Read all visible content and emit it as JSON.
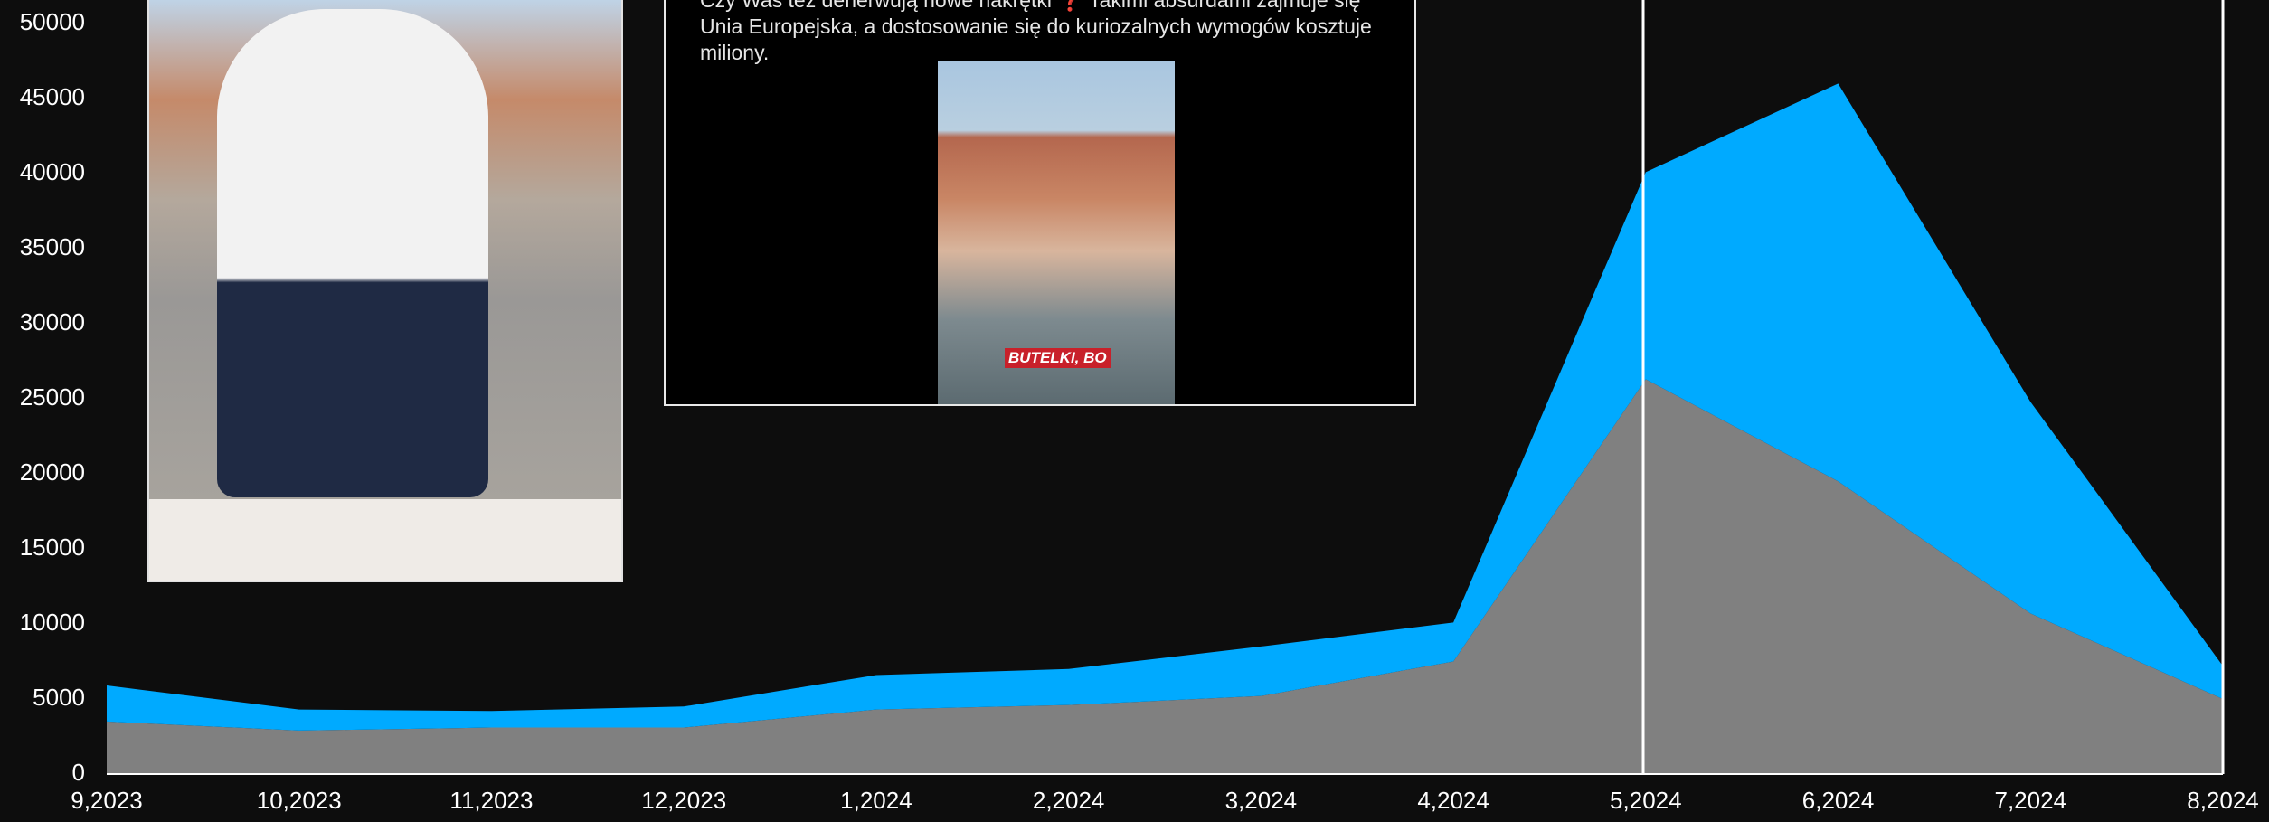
{
  "chart_data": {
    "type": "stacked_area",
    "categories": [
      "9,2023",
      "10,2023",
      "11,2023",
      "12,2023",
      "1,2024",
      "2,2024",
      "3,2024",
      "4,2024",
      "5,2024",
      "6,2024",
      "7,2024",
      "8,2024"
    ],
    "series": [
      {
        "color": "#808080",
        "values": [
          3500,
          2900,
          3100,
          3100,
          4300,
          4600,
          5200,
          7500,
          26300,
          19500,
          10700,
          5000
        ]
      },
      {
        "color": "#00aaff",
        "values": [
          2400,
          1400,
          1100,
          1400,
          2300,
          2400,
          3300,
          2600,
          13800,
          26500,
          14100,
          2200
        ]
      }
    ],
    "ylim": [
      0,
      50000
    ],
    "yticks": [
      0,
      5000,
      10000,
      15000,
      20000,
      25000,
      30000,
      35000,
      40000,
      45000,
      50000
    ]
  },
  "post": {
    "text": "Czy Was też denerwują nowe nakrętki ❓ Takimi absurdami zajmuje się Unia Europejska, a dostosowanie się do kuriozalnych wymogów kosztuje miliony.",
    "image_caption": "BUTELKI, BO"
  }
}
